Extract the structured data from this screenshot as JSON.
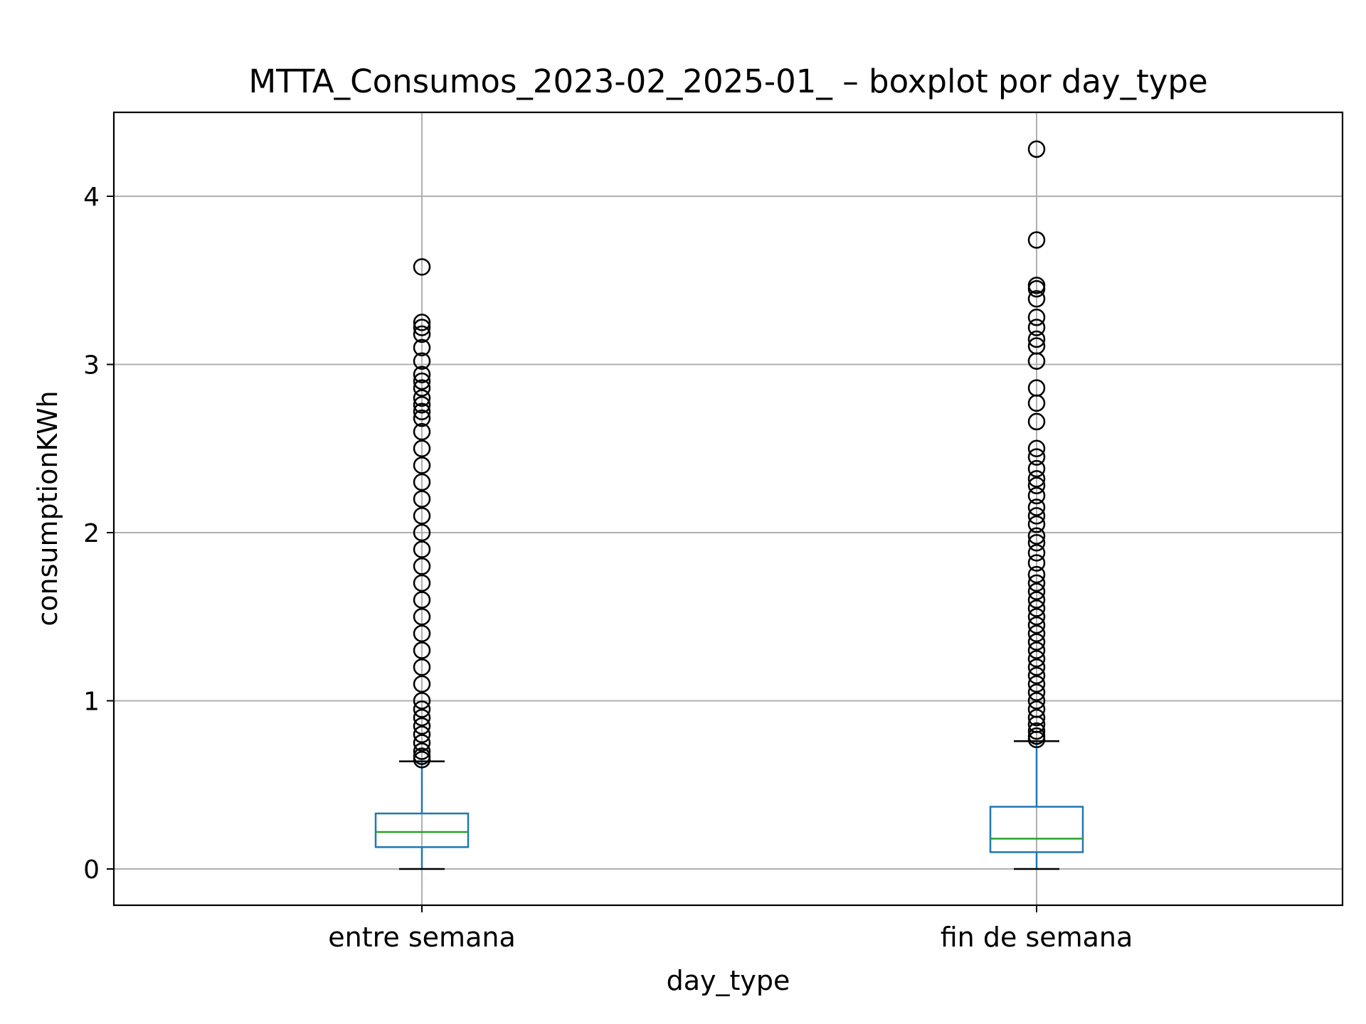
{
  "chart_data": {
    "type": "boxplot",
    "title": "MTTA_Consumos_2023-02_2025-01_ – boxplot por day_type",
    "xlabel": "day_type",
    "ylabel": "consumptionKWh",
    "categories": [
      "entre semana",
      "fin de semana"
    ],
    "ylim": [
      -0.21,
      4.5
    ],
    "yticks": [
      0,
      1,
      2,
      3,
      4
    ],
    "grid": true,
    "colors": {
      "box": "#1f77b4",
      "median": "#2ca02c",
      "whisker": "#1f77b4",
      "cap": "#000000",
      "flier": "#000000",
      "grid": "#b0b0b0"
    },
    "boxes": [
      {
        "category": "entre semana",
        "whislo": 0.0,
        "q1": 0.13,
        "med": 0.22,
        "q3": 0.33,
        "whishi": 0.64,
        "fliers": [
          3.58,
          3.25,
          3.22,
          3.18,
          3.1,
          3.02,
          2.94,
          2.9,
          2.86,
          2.8,
          2.76,
          2.72,
          2.68,
          2.6,
          2.5,
          2.4,
          2.3,
          2.2,
          2.1,
          2.0,
          1.9,
          1.8,
          1.7,
          1.6,
          1.5,
          1.4,
          1.3,
          1.2,
          1.1,
          1.0,
          0.95,
          0.9,
          0.85,
          0.8,
          0.75,
          0.7,
          0.67,
          0.65
        ]
      },
      {
        "category": "fin de semana",
        "whislo": 0.0,
        "q1": 0.1,
        "med": 0.18,
        "q3": 0.37,
        "whishi": 0.76,
        "fliers": [
          4.28,
          3.74,
          3.47,
          3.45,
          3.39,
          3.28,
          3.22,
          3.15,
          3.11,
          3.02,
          2.86,
          2.77,
          2.66,
          2.5,
          2.45,
          2.38,
          2.32,
          2.28,
          2.22,
          2.15,
          2.1,
          2.05,
          1.98,
          1.94,
          1.88,
          1.82,
          1.75,
          1.7,
          1.65,
          1.6,
          1.55,
          1.5,
          1.45,
          1.4,
          1.35,
          1.3,
          1.25,
          1.2,
          1.15,
          1.1,
          1.05,
          1.0,
          0.95,
          0.9,
          0.86,
          0.82,
          0.79,
          0.77
        ]
      }
    ]
  }
}
